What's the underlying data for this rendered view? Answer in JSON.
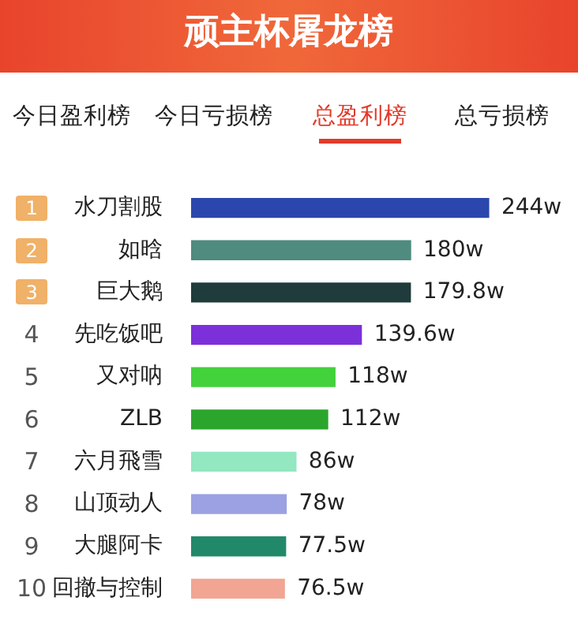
{
  "chart_data": {
    "type": "bar",
    "orientation": "horizontal",
    "title": "顽主杯屠龙榜",
    "categories": [
      "水刀割股",
      "如晗",
      "巨大鹅",
      "先吃饭吧",
      "又对呐",
      "ZLB",
      "六月飛雪",
      "山顶动人",
      "大腿阿卡",
      "回撤与控制"
    ],
    "values": [
      244,
      180,
      179.8,
      139.6,
      118,
      112,
      86,
      78,
      77.5,
      76.5
    ],
    "value_labels": [
      "244w",
      "180w",
      "179.8w",
      "139.6w",
      "118w",
      "112w",
      "86w",
      "78w",
      "77.5w",
      "76.5w"
    ],
    "colors": [
      "#2b47ad",
      "#4f8b7e",
      "#1f3b3b",
      "#7b30d9",
      "#43d13c",
      "#2ca52d",
      "#93e7c1",
      "#9ba1e2",
      "#21896a",
      "#f2a593"
    ],
    "annotations": [
      "今日盈利榜",
      "今日亏损榜",
      "总盈利榜",
      "总亏损榜",
      "1",
      "2",
      "3",
      "4",
      "5",
      "6",
      "7",
      "8",
      "9",
      "10"
    ]
  }
}
